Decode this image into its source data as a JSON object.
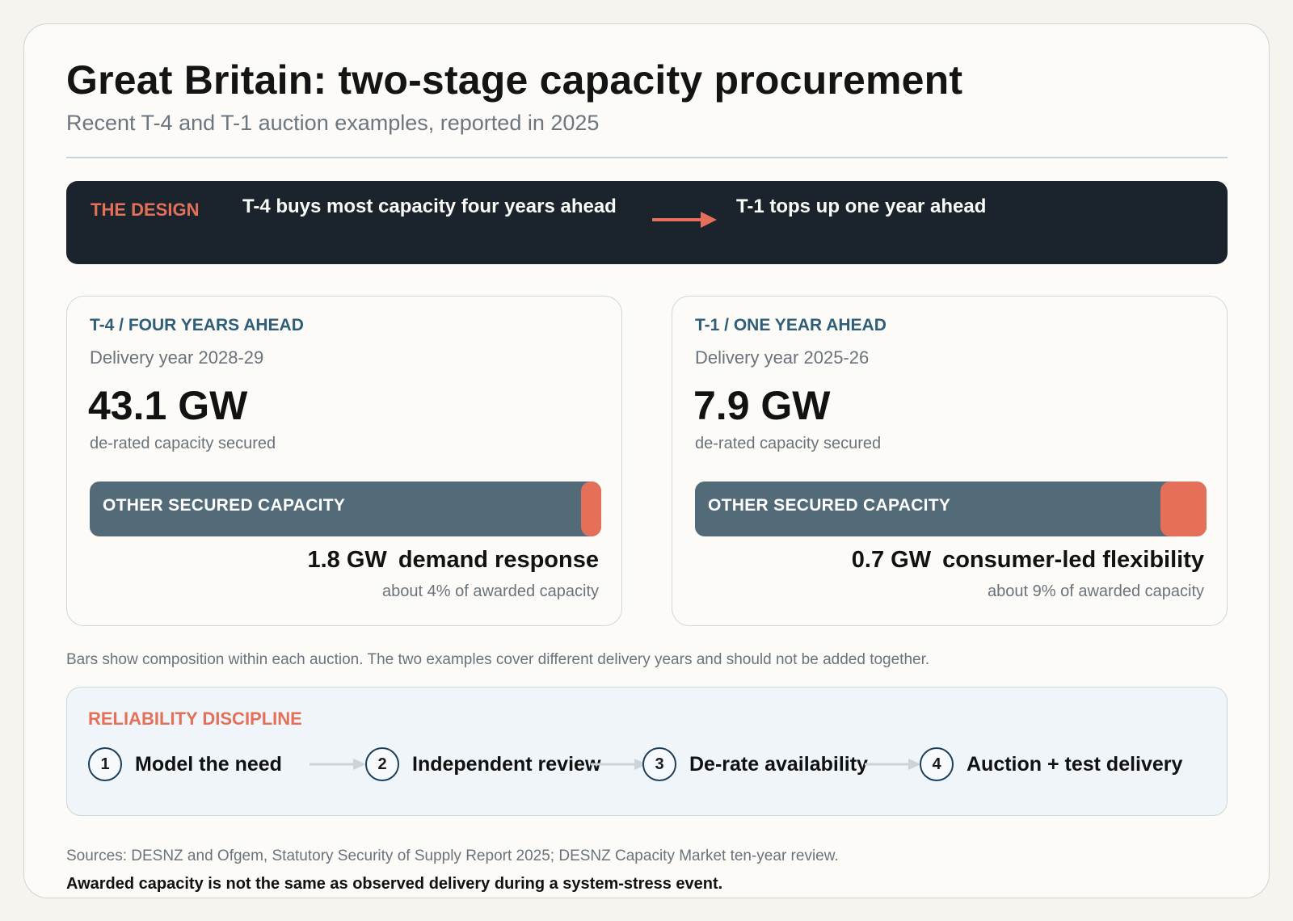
{
  "header": {
    "title": "Great Britain: two-stage capacity procurement",
    "subtitle": "Recent T-4 and T-1 auction examples, reported in 2025"
  },
  "design": {
    "label": "THE DESIGN",
    "t4_text": "T-4 buys most capacity four years ahead",
    "t1_text": "T-1 tops up one year ahead"
  },
  "cards": [
    {
      "kicker": "T-4 / FOUR YEARS AHEAD",
      "delivery": "Delivery year 2028-29",
      "value": "43.1 GW",
      "caption": "de-rated capacity secured",
      "bar_label": "OTHER SECURED CAPACITY",
      "highlight_share": 0.04,
      "detail_gw": "1.8 GW",
      "detail_label": "demand response",
      "share_text": "about 4% of awarded capacity"
    },
    {
      "kicker": "T-1 / ONE YEAR AHEAD",
      "delivery": "Delivery year 2025-26",
      "value": "7.9 GW",
      "caption": "de-rated capacity secured",
      "bar_label": "OTHER SECURED CAPACITY",
      "highlight_share": 0.09,
      "detail_gw": "0.7 GW",
      "detail_label": "consumer-led flexibility",
      "share_text": "about 9% of awarded capacity"
    }
  ],
  "note": "Bars show composition within each auction. The two examples cover different delivery years and should not be added together.",
  "reliability": {
    "label": "RELIABILITY DISCIPLINE",
    "steps": [
      {
        "num": "1",
        "text": "Model the need"
      },
      {
        "num": "2",
        "text": "Independent review"
      },
      {
        "num": "3",
        "text": "De-rate availability"
      },
      {
        "num": "4",
        "text": "Auction + test delivery"
      }
    ]
  },
  "sources": "Sources: DESNZ and Ofgem, Statutory Security of Supply Report 2025; DESNZ Capacity Market ten-year review.",
  "footnote": "Awarded capacity is not the same as observed delivery during a system-stress event.",
  "colors": {
    "accent": "#e4705a",
    "dark_banner": "#1b242c",
    "bar_base": "#536a78",
    "kicker": "#2e5e78"
  }
}
